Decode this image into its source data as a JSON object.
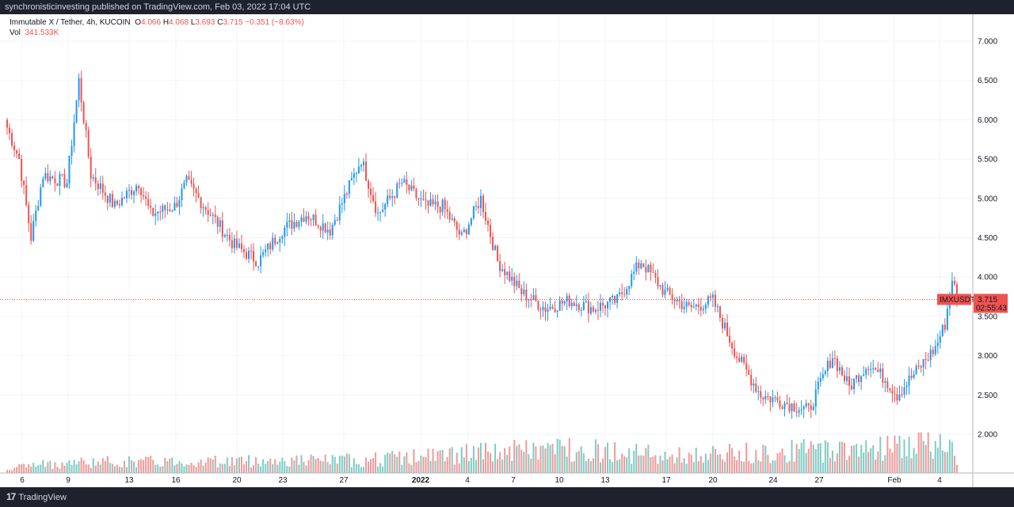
{
  "header": {
    "text": "synchronisticinvesting published on TradingView.com, Feb 03, 2022 17:04 UTC"
  },
  "legend": {
    "symbol": "Immutable X / Tether, 4h, KUCOIN",
    "open_label": "O",
    "open": "4.066",
    "high_label": "H",
    "high": "4.068",
    "low_label": "L",
    "low": "3.693",
    "close_label": "C",
    "close": "3.715",
    "change": "−0.351 (−8.63%)",
    "vol_label": "Vol",
    "vol": "341.533K"
  },
  "footer": {
    "logo": "17",
    "brand": "TradingView"
  },
  "colors": {
    "up": "#2196f3",
    "down": "#ef5350",
    "vol_up": "#80cbc4",
    "vol_down": "#ef9a9a",
    "background": "#ffffff",
    "frame": "#1e222d"
  },
  "chart_data": {
    "type": "candlestick",
    "symbol": "IMXUSDT",
    "timeframe": "4h",
    "exchange": "KUCOIN",
    "y_axis": {
      "ticks": [
        "7.000",
        "6.500",
        "6.000",
        "5.500",
        "5.000",
        "4.500",
        "4.000",
        "3.500",
        "3.000",
        "2.500",
        "2.000"
      ],
      "ylim": [
        1.7,
        7.3
      ],
      "position": "right"
    },
    "x_axis": {
      "ticks": [
        "6",
        "9",
        "13",
        "16",
        "20",
        "23",
        "27",
        "2022",
        "4",
        "7",
        "10",
        "13",
        "17",
        "20",
        "24",
        "27",
        "Feb",
        "4"
      ],
      "bold_ticks": [
        "2022"
      ]
    },
    "price_label": {
      "symbol": "IMXUSDT",
      "price": "3.715",
      "countdown": "02:55:43",
      "value": 3.715
    },
    "series": [
      {
        "name": "close",
        "keypoints": [
          [
            0,
            5.9
          ],
          [
            5,
            5.5
          ],
          [
            10,
            4.5
          ],
          [
            15,
            5.3
          ],
          [
            25,
            5.2
          ],
          [
            30,
            6.5
          ],
          [
            35,
            5.3
          ],
          [
            45,
            4.9
          ],
          [
            55,
            5.2
          ],
          [
            60,
            4.8
          ],
          [
            70,
            4.9
          ],
          [
            75,
            5.2
          ],
          [
            85,
            4.8
          ],
          [
            95,
            4.4
          ],
          [
            105,
            4.2
          ],
          [
            115,
            4.6
          ],
          [
            125,
            4.8
          ],
          [
            135,
            4.6
          ],
          [
            148,
            5.5
          ],
          [
            155,
            4.8
          ],
          [
            165,
            5.2
          ],
          [
            175,
            4.9
          ],
          [
            182,
            4.9
          ],
          [
            190,
            4.5
          ],
          [
            198,
            5.0
          ],
          [
            205,
            4.2
          ],
          [
            215,
            3.8
          ],
          [
            225,
            3.6
          ],
          [
            235,
            3.7
          ],
          [
            245,
            3.6
          ],
          [
            255,
            3.7
          ],
          [
            265,
            4.2
          ],
          [
            275,
            3.8
          ],
          [
            285,
            3.6
          ],
          [
            295,
            3.7
          ],
          [
            305,
            3.0
          ],
          [
            315,
            2.5
          ],
          [
            325,
            2.4
          ],
          [
            335,
            2.3
          ],
          [
            345,
            3.0
          ],
          [
            352,
            2.6
          ],
          [
            360,
            2.9
          ],
          [
            367,
            2.7
          ],
          [
            372,
            2.5
          ],
          [
            380,
            2.8
          ],
          [
            388,
            3.1
          ],
          [
            392,
            3.4
          ],
          [
            395,
            4.0
          ],
          [
            397,
            3.715
          ]
        ]
      },
      {
        "name": "volume_scale",
        "keypoints": [
          [
            0,
            0.8
          ],
          [
            28,
            1.5
          ],
          [
            148,
            1.8
          ],
          [
            235,
            3.5
          ],
          [
            278,
            2.3
          ],
          [
            392,
            4.0
          ],
          [
            395,
            8.0
          ],
          [
            397,
            1.0
          ]
        ]
      }
    ]
  }
}
